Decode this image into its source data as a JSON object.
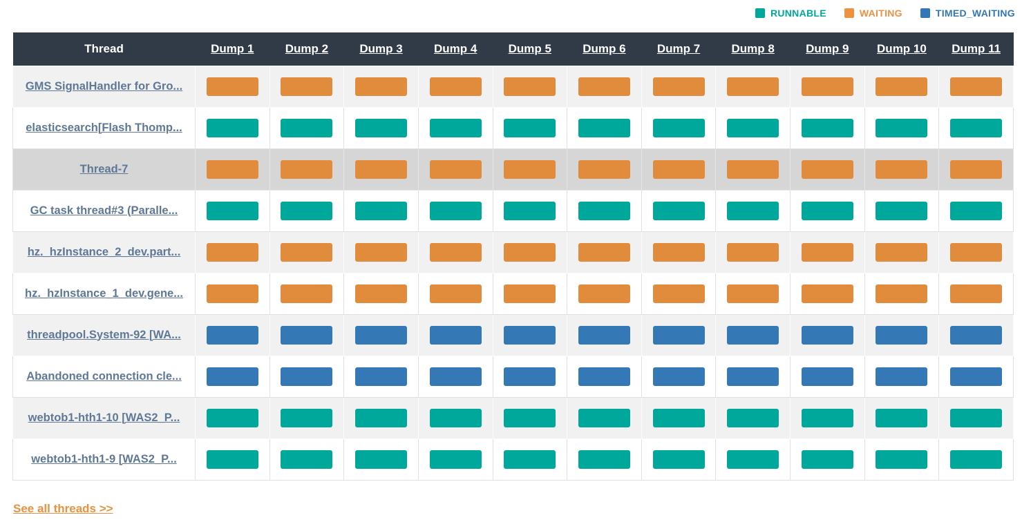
{
  "legend": {
    "items": [
      {
        "id": "runnable",
        "label": "RUNNABLE",
        "color": "#00A79B"
      },
      {
        "id": "waiting",
        "label": "WAITING",
        "color": "#ED9143"
      },
      {
        "id": "timed_waiting",
        "label": "TIMED_WAITING",
        "color": "#3377B5"
      }
    ]
  },
  "state_colors": {
    "RUNNABLE": "#00A79B",
    "WAITING": "#E18C3C",
    "TIMED_WAITING": "#3478B6"
  },
  "table": {
    "thread_header": "Thread",
    "dump_headers": [
      "Dump 1",
      "Dump 2",
      "Dump 3",
      "Dump 4",
      "Dump 5",
      "Dump 6",
      "Dump 7",
      "Dump 8",
      "Dump 9",
      "Dump 10",
      "Dump 11"
    ],
    "rows": [
      {
        "thread": "GMS SignalHandler for Gro...",
        "highlighted": false,
        "states": [
          "WAITING",
          "WAITING",
          "WAITING",
          "WAITING",
          "WAITING",
          "WAITING",
          "WAITING",
          "WAITING",
          "WAITING",
          "WAITING",
          "WAITING"
        ]
      },
      {
        "thread": "elasticsearch[Flash Thomp...",
        "highlighted": false,
        "states": [
          "RUNNABLE",
          "RUNNABLE",
          "RUNNABLE",
          "RUNNABLE",
          "RUNNABLE",
          "RUNNABLE",
          "RUNNABLE",
          "RUNNABLE",
          "RUNNABLE",
          "RUNNABLE",
          "RUNNABLE"
        ]
      },
      {
        "thread": "Thread-7",
        "highlighted": true,
        "states": [
          "WAITING",
          "WAITING",
          "WAITING",
          "WAITING",
          "WAITING",
          "WAITING",
          "WAITING",
          "WAITING",
          "WAITING",
          "WAITING",
          "WAITING"
        ]
      },
      {
        "thread": "GC task thread#3 (Paralle...",
        "highlighted": false,
        "states": [
          "RUNNABLE",
          "RUNNABLE",
          "RUNNABLE",
          "RUNNABLE",
          "RUNNABLE",
          "RUNNABLE",
          "RUNNABLE",
          "RUNNABLE",
          "RUNNABLE",
          "RUNNABLE",
          "RUNNABLE"
        ]
      },
      {
        "thread": "hz._hzInstance_2_dev.part...",
        "highlighted": false,
        "states": [
          "WAITING",
          "WAITING",
          "WAITING",
          "WAITING",
          "WAITING",
          "WAITING",
          "WAITING",
          "WAITING",
          "WAITING",
          "WAITING",
          "WAITING"
        ]
      },
      {
        "thread": "hz._hzInstance_1_dev.gene...",
        "highlighted": false,
        "states": [
          "WAITING",
          "WAITING",
          "WAITING",
          "WAITING",
          "WAITING",
          "WAITING",
          "WAITING",
          "WAITING",
          "WAITING",
          "WAITING",
          "WAITING"
        ]
      },
      {
        "thread": "threadpool.System-92 [WA...",
        "highlighted": false,
        "states": [
          "TIMED_WAITING",
          "TIMED_WAITING",
          "TIMED_WAITING",
          "TIMED_WAITING",
          "TIMED_WAITING",
          "TIMED_WAITING",
          "TIMED_WAITING",
          "TIMED_WAITING",
          "TIMED_WAITING",
          "TIMED_WAITING",
          "TIMED_WAITING"
        ]
      },
      {
        "thread": "Abandoned connection cle...",
        "highlighted": false,
        "states": [
          "TIMED_WAITING",
          "TIMED_WAITING",
          "TIMED_WAITING",
          "TIMED_WAITING",
          "TIMED_WAITING",
          "TIMED_WAITING",
          "TIMED_WAITING",
          "TIMED_WAITING",
          "TIMED_WAITING",
          "TIMED_WAITING",
          "TIMED_WAITING"
        ]
      },
      {
        "thread": "webtob1-hth1-10 [WAS2_P...",
        "highlighted": false,
        "states": [
          "RUNNABLE",
          "RUNNABLE",
          "RUNNABLE",
          "RUNNABLE",
          "RUNNABLE",
          "RUNNABLE",
          "RUNNABLE",
          "RUNNABLE",
          "RUNNABLE",
          "RUNNABLE",
          "RUNNABLE"
        ]
      },
      {
        "thread": "webtob1-hth1-9 [WAS2_P...",
        "highlighted": false,
        "states": [
          "RUNNABLE",
          "RUNNABLE",
          "RUNNABLE",
          "RUNNABLE",
          "RUNNABLE",
          "RUNNABLE",
          "RUNNABLE",
          "RUNNABLE",
          "RUNNABLE",
          "RUNNABLE",
          "RUNNABLE"
        ]
      }
    ]
  },
  "footer": {
    "see_all_label": "See all threads >>"
  }
}
